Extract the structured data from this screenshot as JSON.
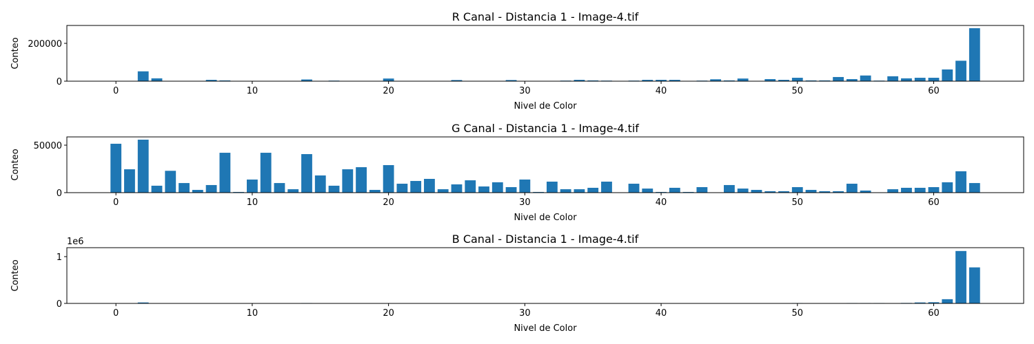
{
  "chart_data": [
    {
      "type": "bar",
      "title": "R Canal - Distancia 1 - Image-4.tif",
      "xlabel": "Nivel de Color",
      "ylabel": "Conteo",
      "color": "#1f77b4",
      "x": [
        0,
        1,
        2,
        3,
        4,
        5,
        6,
        7,
        8,
        9,
        10,
        11,
        12,
        13,
        14,
        15,
        16,
        17,
        18,
        19,
        20,
        21,
        22,
        23,
        24,
        25,
        26,
        27,
        28,
        29,
        30,
        31,
        32,
        33,
        34,
        35,
        36,
        37,
        38,
        39,
        40,
        41,
        42,
        43,
        44,
        45,
        46,
        47,
        48,
        49,
        50,
        51,
        52,
        53,
        54,
        55,
        56,
        57,
        58,
        59,
        60,
        61,
        62,
        63
      ],
      "values": [
        0,
        0,
        52000,
        15000,
        0,
        0,
        0,
        7000,
        4000,
        0,
        0,
        0,
        0,
        0,
        9000,
        0,
        3000,
        0,
        0,
        0,
        14000,
        0,
        0,
        0,
        0,
        6000,
        0,
        0,
        0,
        6000,
        0,
        0,
        0,
        3000,
        7000,
        4000,
        3000,
        0,
        3000,
        7000,
        7000,
        7000,
        0,
        3000,
        10000,
        4000,
        14000,
        0,
        11000,
        7000,
        18000,
        4000,
        4000,
        22000,
        11000,
        30000,
        3000,
        26000,
        15000,
        18000,
        18000,
        62000,
        108000,
        280000
      ],
      "xlim": [
        -3.6,
        66.6
      ],
      "xticks": [
        0,
        10,
        20,
        30,
        40,
        50,
        60
      ],
      "ylim": [
        0,
        294500
      ],
      "yticks": [
        0,
        200000
      ]
    },
    {
      "type": "bar",
      "title": "G Canal - Distancia 1 - Image-4.tif",
      "xlabel": "Nivel de Color",
      "ylabel": "Conteo",
      "color": "#1f77b4",
      "x": [
        0,
        1,
        2,
        3,
        4,
        5,
        6,
        7,
        8,
        9,
        10,
        11,
        12,
        13,
        14,
        15,
        16,
        17,
        18,
        19,
        20,
        21,
        22,
        23,
        24,
        25,
        26,
        27,
        28,
        29,
        30,
        31,
        32,
        33,
        34,
        35,
        36,
        37,
        38,
        39,
        40,
        41,
        42,
        43,
        44,
        45,
        46,
        47,
        48,
        49,
        50,
        51,
        52,
        53,
        54,
        55,
        56,
        57,
        58,
        59,
        60,
        61,
        62,
        63
      ],
      "values": [
        51500,
        24600,
        55800,
        7300,
        23000,
        10100,
        2900,
        8000,
        42000,
        700,
        13800,
        42000,
        10100,
        3600,
        40600,
        18100,
        7300,
        24600,
        26800,
        2900,
        29000,
        9400,
        12300,
        14500,
        3600,
        8700,
        13000,
        6500,
        10900,
        5800,
        13800,
        700,
        11600,
        3600,
        3600,
        5100,
        11600,
        0,
        9400,
        4300,
        700,
        5100,
        700,
        5800,
        0,
        8000,
        4300,
        2900,
        1500,
        1500,
        5800,
        2900,
        1500,
        1500,
        9400,
        2200,
        0,
        3600,
        5100,
        5100,
        5800,
        10900,
        22500,
        10100
      ],
      "xlim": [
        -3.6,
        66.6
      ],
      "xticks": [
        0,
        10,
        20,
        30,
        40,
        50,
        60
      ],
      "ylim": [
        0,
        58700
      ],
      "yticks": [
        0,
        50000
      ]
    },
    {
      "type": "bar",
      "title": "B Canal - Distancia 1 - Image-4.tif",
      "xlabel": "Nivel de Color",
      "ylabel": "Conteo",
      "color": "#1f77b4",
      "y_offset_label": "1e6",
      "x": [
        0,
        1,
        2,
        3,
        4,
        5,
        6,
        7,
        8,
        9,
        10,
        11,
        12,
        13,
        14,
        15,
        16,
        17,
        18,
        19,
        20,
        21,
        22,
        23,
        24,
        25,
        26,
        27,
        28,
        29,
        30,
        31,
        32,
        33,
        34,
        35,
        36,
        37,
        38,
        39,
        40,
        41,
        42,
        43,
        44,
        45,
        46,
        47,
        48,
        49,
        50,
        51,
        52,
        53,
        54,
        55,
        56,
        57,
        58,
        59,
        60,
        61,
        62,
        63
      ],
      "values": [
        0,
        0,
        20000,
        0,
        0,
        0,
        0,
        0,
        0,
        0,
        0,
        0,
        0,
        0,
        8000,
        0,
        0,
        0,
        0,
        6000,
        0,
        0,
        0,
        0,
        0,
        0,
        0,
        0,
        0,
        0,
        0,
        6000,
        0,
        0,
        0,
        0,
        6000,
        0,
        0,
        0,
        0,
        0,
        0,
        0,
        0,
        6000,
        6000,
        0,
        0,
        0,
        8000,
        0,
        0,
        0,
        8000,
        8000,
        8000,
        0,
        10000,
        20000,
        25000,
        90000,
        1120000,
        770000
      ],
      "xlim": [
        -3.6,
        66.6
      ],
      "xticks": [
        0,
        10,
        20,
        30,
        40,
        50,
        60
      ],
      "ylim": [
        0,
        1191000
      ],
      "yticks": [
        0,
        {
          "value": 1000000,
          "label": "1"
        }
      ]
    }
  ]
}
